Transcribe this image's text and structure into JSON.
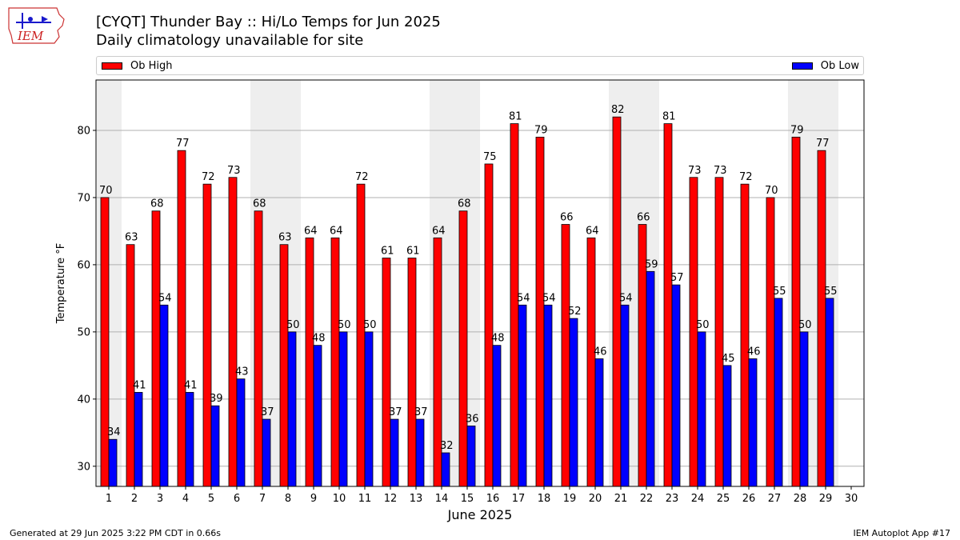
{
  "header": {
    "title_line1": "[CYQT] Thunder Bay :: Hi/Lo Temps for Jun 2025",
    "title_line2": "Daily climatology unavailable for site"
  },
  "logo": {
    "text": "IEM",
    "icon": "iem-iowa-logo-icon"
  },
  "footer": {
    "left": "Generated at 29 Jun 2025 3:22 PM CDT in 0.66s",
    "right": "IEM Autoplot App #17"
  },
  "chart_data": {
    "type": "bar",
    "xlabel": "June 2025",
    "ylabel": "Temperature °F",
    "ylim": [
      27,
      87.5
    ],
    "yticks": [
      30,
      40,
      50,
      60,
      70,
      80
    ],
    "grid": "horizontal",
    "legend_placement": "top, above plot",
    "categories": [
      "1",
      "2",
      "3",
      "4",
      "5",
      "6",
      "7",
      "8",
      "9",
      "10",
      "11",
      "12",
      "13",
      "14",
      "15",
      "16",
      "17",
      "18",
      "19",
      "20",
      "21",
      "22",
      "23",
      "24",
      "25",
      "26",
      "27",
      "28",
      "29",
      "30"
    ],
    "weekend_shading": [
      [
        1,
        1
      ],
      [
        7,
        8
      ],
      [
        14,
        15
      ],
      [
        21,
        22
      ],
      [
        28,
        29
      ]
    ],
    "series": [
      {
        "name": "Ob High",
        "color": "#ff0000",
        "values": [
          70,
          63,
          68,
          77,
          72,
          73,
          68,
          63,
          64,
          64,
          72,
          61,
          61,
          64,
          68,
          75,
          81,
          79,
          66,
          64,
          82,
          66,
          81,
          73,
          73,
          72,
          70,
          79,
          77,
          null
        ]
      },
      {
        "name": "Ob Low",
        "color": "#0000ff",
        "values": [
          34,
          41,
          54,
          41,
          39,
          43,
          37,
          50,
          48,
          50,
          50,
          37,
          37,
          32,
          36,
          48,
          54,
          54,
          52,
          46,
          54,
          59,
          57,
          50,
          45,
          46,
          55,
          50,
          55,
          null
        ]
      }
    ]
  }
}
